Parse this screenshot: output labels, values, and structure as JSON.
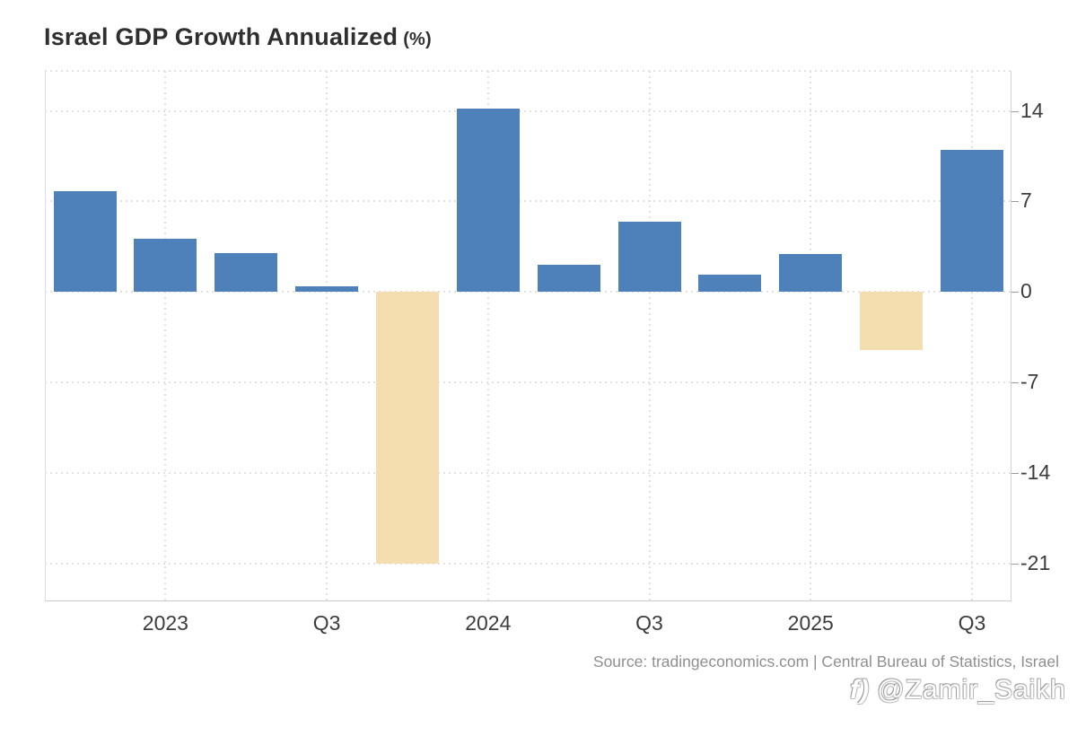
{
  "title": {
    "text": "Israel GDP Growth Annualized",
    "unit": "(%)"
  },
  "chart_data": {
    "type": "bar",
    "title": "Israel GDP Growth Annualized (%)",
    "x": [
      "Q4 2022",
      "Q1 2023",
      "Q2 2023",
      "Q3 2023",
      "Q4 2023",
      "Q1 2024",
      "Q2 2024",
      "Q3 2024",
      "Q4 2024",
      "Q1 2025",
      "Q2 2025",
      "Q3 2025"
    ],
    "values": [
      7.8,
      4.1,
      3.0,
      0.4,
      -21.0,
      14.2,
      2.1,
      5.4,
      1.3,
      2.9,
      -4.5,
      11.0
    ],
    "x_tick_labels": [
      {
        "index": 1,
        "label": "2023"
      },
      {
        "index": 3,
        "label": "Q3"
      },
      {
        "index": 5,
        "label": "2024"
      },
      {
        "index": 7,
        "label": "Q3"
      },
      {
        "index": 9,
        "label": "2025"
      },
      {
        "index": 11,
        "label": "Q3"
      }
    ],
    "y_ticks": [
      14,
      7,
      0,
      -7,
      -14,
      -21
    ],
    "ylim": [
      -23.95,
      17.1
    ],
    "grid": "dotted",
    "legend": "none",
    "y_axis_side": "right",
    "colors": {
      "positive_bar": "#4e80b9",
      "negative_bar": "#f4deb0",
      "grid": "#e2e2e2",
      "axis": "#cccccc",
      "tick_text": "#3c3c3c"
    }
  },
  "source": {
    "text": "Source: tradingeconomics.com | Central Bureau of Statistics, Israel"
  },
  "watermark": {
    "icon": "f)",
    "handle": "@Zamir_Saikh"
  }
}
